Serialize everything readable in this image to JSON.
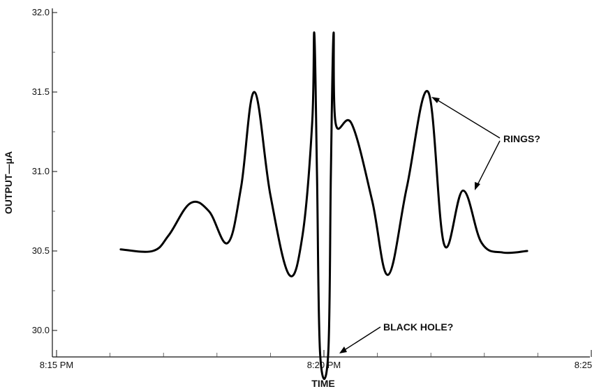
{
  "chart_data": {
    "type": "line",
    "xlabel": "TIME",
    "ylabel": "OUTPUT—μA",
    "x_tick_labels": [
      "8:15 PM",
      "8:20 PM",
      "8:25 PM"
    ],
    "y_tick_labels": [
      "30.0",
      "30.5",
      "31.0",
      "31.5",
      "32.0"
    ],
    "ylim": [
      29.8,
      32.0
    ],
    "xlim_minutes_after_8pm": [
      15,
      25
    ],
    "grid": false,
    "series": [
      {
        "x_minutes_after_8pm": [
          16.2,
          16.8,
          17.1,
          17.5,
          17.85,
          18.2,
          18.45,
          18.7,
          19.0,
          19.35,
          19.6,
          19.78,
          19.82,
          19.87,
          19.93,
          20.08,
          20.13,
          20.18,
          20.22,
          20.52,
          20.9,
          21.2,
          21.55,
          21.95,
          22.25,
          22.6,
          22.95,
          23.35,
          23.8
        ],
        "y": [
          30.51,
          30.5,
          30.6,
          30.8,
          30.75,
          30.55,
          30.9,
          31.5,
          30.85,
          30.35,
          30.6,
          31.3,
          31.87,
          31.0,
          29.85,
          29.85,
          31.0,
          31.87,
          31.3,
          31.3,
          30.82,
          30.35,
          30.9,
          31.5,
          30.54,
          30.88,
          30.55,
          30.49,
          30.5
        ]
      }
    ],
    "annotations": [
      {
        "text": "RINGS?"
      },
      {
        "text": "BLACK HOLE?"
      }
    ]
  }
}
